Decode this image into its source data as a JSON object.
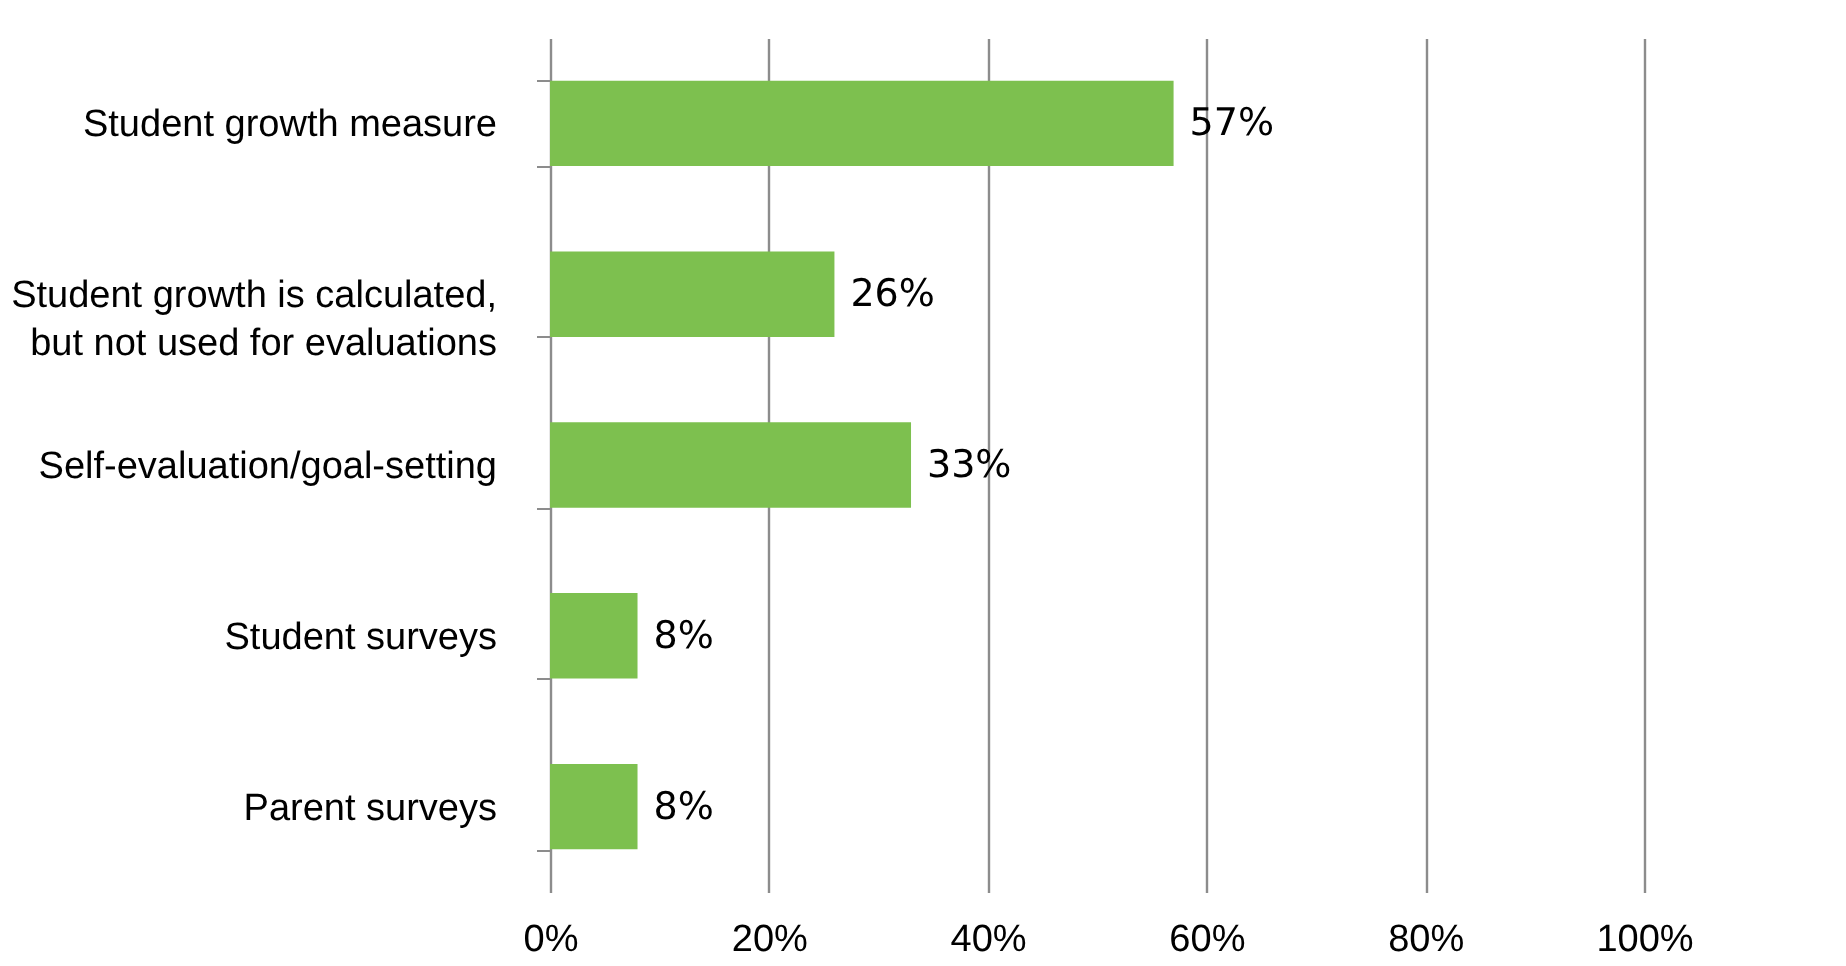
{
  "chart_data": {
    "type": "bar",
    "orientation": "horizontal",
    "categories": [
      "Student growth measure",
      "Student growth is calculated, but not used for evaluations",
      "Self-evaluation/goal-setting",
      "Student surveys",
      "Parent surveys"
    ],
    "values": [
      57,
      26,
      33,
      8,
      8
    ],
    "value_labels": [
      "57%",
      "26%",
      "33%",
      "8%",
      "8%"
    ],
    "color": "#7dc04f",
    "xlim": [
      0,
      100
    ],
    "xticks": [
      {
        "value": 0,
        "label": "0%"
      },
      {
        "value": 20,
        "label": "20%"
      },
      {
        "value": 40,
        "label": "40%"
      },
      {
        "value": 60,
        "label": "60%"
      },
      {
        "value": 80,
        "label": "80%"
      },
      {
        "value": 100,
        "label": "100%"
      }
    ],
    "grid": "x"
  }
}
